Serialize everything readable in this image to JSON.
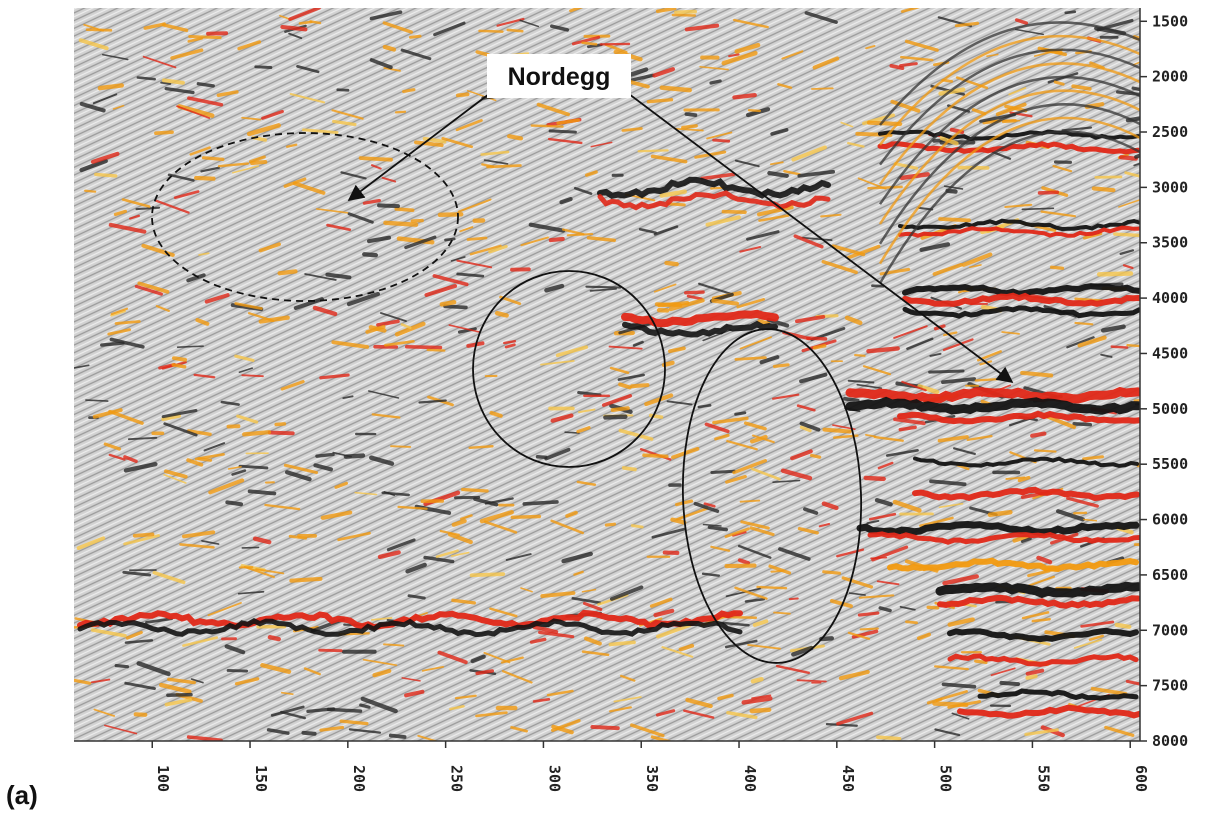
{
  "panel_label": "(a)",
  "callout": {
    "label": "Nordegg"
  },
  "axes": {
    "x_ticks": [
      "100",
      "150",
      "200",
      "250",
      "300",
      "350",
      "400",
      "450",
      "500",
      "550",
      "600"
    ],
    "x_tick_values": [
      100,
      150,
      200,
      250,
      300,
      350,
      400,
      450,
      500,
      550,
      600
    ],
    "x_range": [
      60,
      605
    ],
    "y_ticks": [
      "1500",
      "2000",
      "2500",
      "3000",
      "3500",
      "4000",
      "4500",
      "5000",
      "5500",
      "6000",
      "6500",
      "7000",
      "7500",
      "8000"
    ],
    "y_tick_values": [
      1500,
      2000,
      2500,
      3000,
      3500,
      4000,
      4500,
      5000,
      5500,
      6000,
      6500,
      7000,
      7500,
      8000
    ],
    "y_range": [
      1380,
      8000
    ],
    "y_axis_side": "right"
  },
  "colors": {
    "background": "#cfcfcf",
    "trough": "#141414",
    "peak_red": "#e02818",
    "peak_orange": "#f29a10",
    "annotation": "#111111"
  }
}
